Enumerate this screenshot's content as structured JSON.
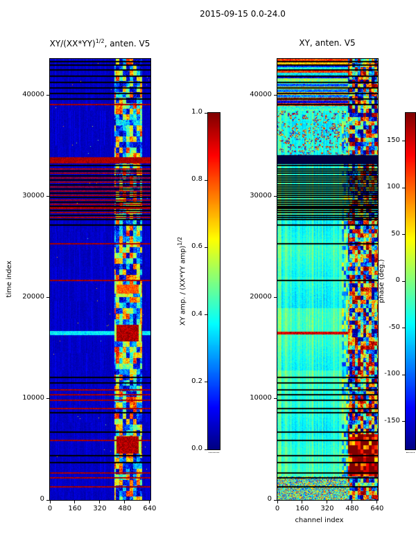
{
  "figure_title": "2015-09-15 0.0-24.0",
  "colors": {
    "background": "#ffffff",
    "axis": "#000000",
    "flag_red": "#8b0000",
    "colormap_low": "#00008b",
    "colormap_high": "#8b0000"
  },
  "chart_data": [
    {
      "type": "heatmap",
      "name": "xy_normalized_amplitude",
      "title": {
        "pre": "XY/(XX*YY)",
        "sup": "1/2",
        "post": ", anten. V5"
      },
      "xlabel": "",
      "ylabel": "time index",
      "colormap": "jet",
      "x_range": [
        0,
        645
      ],
      "y_range": [
        0,
        43600
      ],
      "x_tick_values": [
        0,
        160,
        320,
        480,
        640
      ],
      "x_tick_labels": [
        "0",
        "160",
        "320",
        "480",
        "640"
      ],
      "y_tick_values": [
        0,
        10000,
        20000,
        30000,
        40000
      ],
      "y_tick_labels": [
        "0",
        "10000",
        "20000",
        "30000",
        "40000"
      ],
      "colorbar": {
        "label": {
          "pre": "XY amp. / (XX*YY amp)",
          "sup": "1/2",
          "post": ""
        },
        "range": [
          0.0,
          1.0
        ],
        "tick_values": [
          0.0,
          0.2,
          0.4,
          0.6,
          0.8,
          1.0
        ],
        "tick_labels": [
          "0.0",
          "0.2",
          "0.4",
          "0.6",
          "0.8",
          "1.0"
        ]
      },
      "features": {
        "background_value": 0.05,
        "noisy_band_channels": [
          415,
          590
        ],
        "flag_rows_red": [
          39100,
          32700,
          32300,
          31850,
          31400,
          30950,
          30550,
          30100,
          29650,
          29250,
          28850,
          28400,
          27950,
          25300,
          21700,
          10900,
          10400,
          9850,
          9050,
          5900,
          2650,
          2200,
          1300
        ],
        "flag_rows_black": [
          43350,
          43000,
          42500,
          41900,
          41300,
          40700,
          40200,
          39600,
          33050,
          32500,
          32050,
          31650,
          31150,
          30750,
          30300,
          29900,
          29450,
          29050,
          28600,
          28150,
          27700,
          27200,
          12100,
          11600,
          8600,
          6700,
          4400,
          3700
        ],
        "thick_red_band": [
          33250,
          33900
        ],
        "high_amp_blocks": [
          [
            4600,
            6300,
            1
          ],
          [
            15700,
            17300,
            1
          ],
          [
            20400,
            21300,
            0.5
          ]
        ],
        "cyan_row": 16500
      }
    },
    {
      "type": "heatmap",
      "name": "xy_phase",
      "title": {
        "pre": "XY, anten. V5",
        "sup": "",
        "post": ""
      },
      "xlabel": "channel index",
      "ylabel": "",
      "colormap": "jet",
      "x_range": [
        0,
        645
      ],
      "y_range": [
        0,
        43600
      ],
      "x_tick_values": [
        0,
        160,
        320,
        480,
        640
      ],
      "x_tick_labels": [
        "0",
        "160",
        "320",
        "480",
        "640"
      ],
      "y_tick_values": [
        0,
        10000,
        20000,
        30000,
        40000
      ],
      "y_tick_labels": [
        "0",
        "10000",
        "20000",
        "30000",
        "40000"
      ],
      "colorbar": {
        "label": {
          "pre": "phase (deg.)",
          "sup": "",
          "post": ""
        },
        "range": [
          -180,
          180
        ],
        "tick_values": [
          150,
          100,
          50,
          0,
          -50,
          -100,
          -150
        ],
        "tick_labels": [
          "150",
          "100",
          "50",
          "0",
          "-50",
          "-100",
          "-150"
        ]
      },
      "features": {
        "background_phase_deg": -40,
        "chaotic_band_channels": [
          455,
          645
        ],
        "mid_band_channels": [
          415,
          455
        ],
        "stripe_region_start": 38500,
        "speckle_region": [
          33500,
          38500
        ],
        "bottom_noise_below": 2300,
        "dark_band": [
          33200,
          34100
        ],
        "red_row_time": 16500,
        "red_row_channels": [
          0,
          470
        ]
      }
    }
  ]
}
